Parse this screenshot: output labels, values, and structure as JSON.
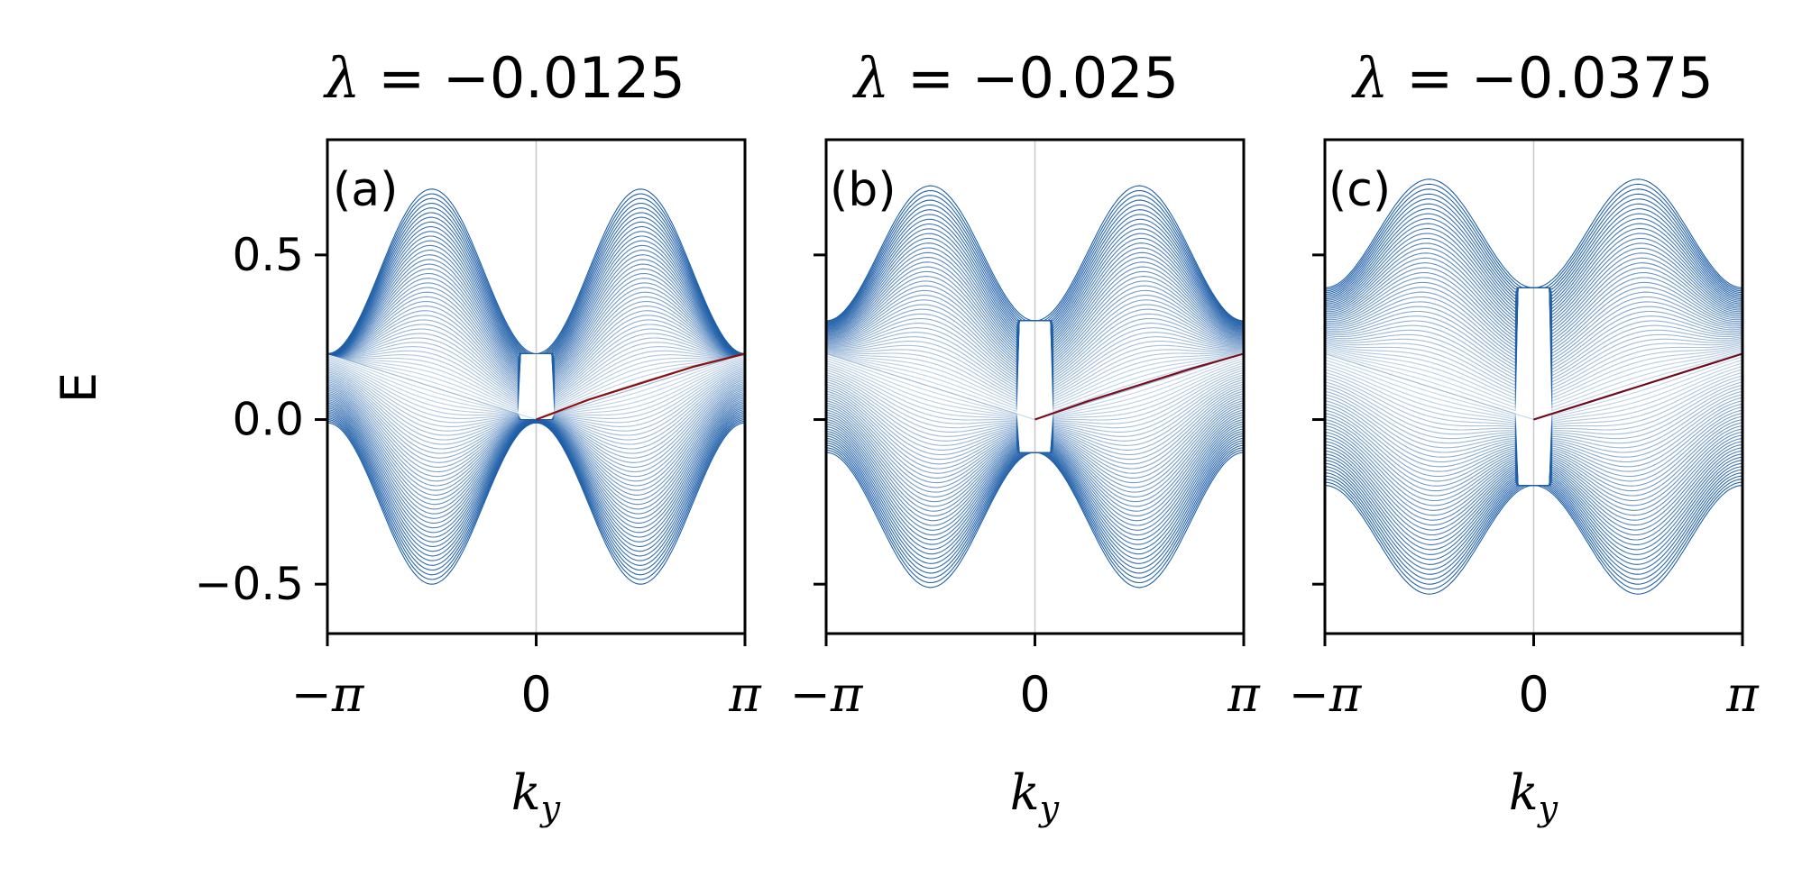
{
  "chart_data": [
    {
      "type": "line",
      "title_symbol": "λ",
      "title_value": " = −0.0125",
      "panel_label": "(a)",
      "lambda": -0.0125,
      "xlabel": "k",
      "xlabel_sub": "y",
      "ylabel": "E",
      "xlim": [
        -3.14159,
        3.14159
      ],
      "ylim": [
        -0.65,
        0.85
      ],
      "xticks": [
        -3.14159,
        0,
        3.14159
      ],
      "xtick_labels": [
        "−π",
        "0",
        "π"
      ],
      "yticks": [
        -0.5,
        0.0,
        0.5
      ],
      "ytick_labels": [
        "−0.5",
        "0.0",
        "0.5"
      ],
      "band": {
        "upper_peak": 0.7,
        "lower_trough": -0.5,
        "center_upper": 0.2,
        "center_lower": -0.01,
        "edge_value": 0.2,
        "inner_upper": 0.2,
        "inner_lower": 0.0
      },
      "edge_state": {
        "x": [
          0,
          0.785,
          1.571,
          2.356,
          3.14159
        ],
        "y": [
          0.0,
          0.06,
          0.11,
          0.16,
          0.2
        ]
      },
      "colors": {
        "bulk": "#1f5fa8",
        "edge": "#8b1010"
      }
    },
    {
      "type": "line",
      "title_symbol": "λ",
      "title_value": " = −0.025",
      "panel_label": "(b)",
      "lambda": -0.025,
      "xlabel": "k",
      "xlabel_sub": "y",
      "ylabel": "",
      "xlim": [
        -3.14159,
        3.14159
      ],
      "ylim": [
        -0.65,
        0.85
      ],
      "xticks": [
        -3.14159,
        0,
        3.14159
      ],
      "xtick_labels": [
        "−π",
        "0",
        "π"
      ],
      "yticks": [
        -0.5,
        0.0,
        0.5
      ],
      "ytick_labels": [
        "",
        "",
        ""
      ],
      "band": {
        "upper_peak": 0.71,
        "lower_trough": -0.51,
        "center_upper": 0.3,
        "center_lower": -0.1,
        "edge_value": 0.2,
        "inner_upper": 0.3,
        "inner_lower": -0.1
      },
      "edge_state": {
        "x": [
          0,
          0.785,
          1.571,
          2.356,
          3.14159
        ],
        "y": [
          0.0,
          0.055,
          0.105,
          0.155,
          0.2
        ]
      },
      "colors": {
        "bulk": "#1f5fa8",
        "edge": "#7a0c1c"
      }
    },
    {
      "type": "line",
      "title_symbol": "λ",
      "title_value": " = −0.0375",
      "panel_label": "(c)",
      "lambda": -0.0375,
      "xlabel": "k",
      "xlabel_sub": "y",
      "ylabel": "",
      "xlim": [
        -3.14159,
        3.14159
      ],
      "ylim": [
        -0.65,
        0.85
      ],
      "xticks": [
        -3.14159,
        0,
        3.14159
      ],
      "xtick_labels": [
        "−π",
        "0",
        "π"
      ],
      "yticks": [
        -0.5,
        0.0,
        0.5
      ],
      "ytick_labels": [
        "",
        "",
        ""
      ],
      "band": {
        "upper_peak": 0.73,
        "lower_trough": -0.53,
        "center_upper": 0.4,
        "center_lower": -0.2,
        "edge_value": 0.2,
        "inner_upper": 0.4,
        "inner_lower": -0.2
      },
      "edge_state": {
        "x": [
          0,
          0.785,
          1.571,
          2.356,
          3.14159
        ],
        "y": [
          0.0,
          0.05,
          0.1,
          0.15,
          0.2
        ]
      },
      "colors": {
        "bulk": "#1f5fa8",
        "edge": "#6e0a1e"
      }
    }
  ]
}
